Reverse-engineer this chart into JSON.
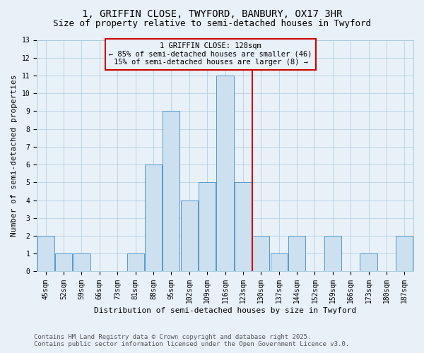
{
  "title": "1, GRIFFIN CLOSE, TWYFORD, BANBURY, OX17 3HR",
  "subtitle": "Size of property relative to semi-detached houses in Twyford",
  "xlabel": "Distribution of semi-detached houses by size in Twyford",
  "ylabel": "Number of semi-detached properties",
  "bin_labels": [
    "45sqm",
    "52sqm",
    "59sqm",
    "66sqm",
    "73sqm",
    "81sqm",
    "88sqm",
    "95sqm",
    "102sqm",
    "109sqm",
    "116sqm",
    "123sqm",
    "130sqm",
    "137sqm",
    "144sqm",
    "152sqm",
    "159sqm",
    "166sqm",
    "173sqm",
    "180sqm",
    "187sqm"
  ],
  "bin_values": [
    2,
    1,
    1,
    0,
    0,
    1,
    6,
    9,
    4,
    5,
    11,
    5,
    2,
    1,
    2,
    0,
    2,
    0,
    1,
    0,
    2
  ],
  "bar_color": "#cce0f0",
  "bar_edge_color": "#5599cc",
  "grid_color": "#aaccdd",
  "bg_color": "#e8f0f8",
  "annotation_title": "1 GRIFFIN CLOSE: 128sqm",
  "annotation_line1": "← 85% of semi-detached houses are smaller (46)",
  "annotation_line2": "15% of semi-detached houses are larger (8) →",
  "annotation_box_color": "#cc0000",
  "ylim": [
    0,
    13
  ],
  "yticks": [
    0,
    1,
    2,
    3,
    4,
    5,
    6,
    7,
    8,
    9,
    10,
    11,
    12,
    13
  ],
  "footer_line1": "Contains HM Land Registry data © Crown copyright and database right 2025.",
  "footer_line2": "Contains public sector information licensed under the Open Government Licence v3.0.",
  "title_fontsize": 10,
  "subtitle_fontsize": 9,
  "axis_label_fontsize": 8,
  "tick_fontsize": 7,
  "annotation_fontsize": 7.5,
  "footer_fontsize": 6.5
}
